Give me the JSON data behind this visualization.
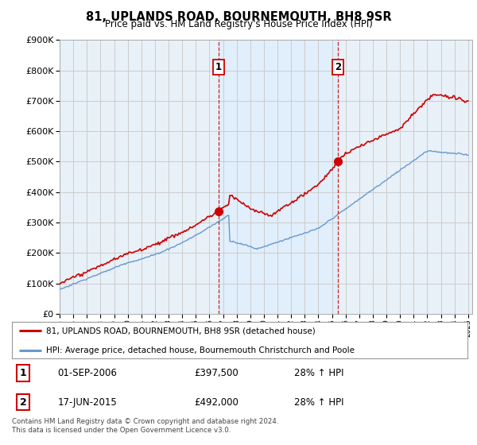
{
  "title": "81, UPLANDS ROAD, BOURNEMOUTH, BH8 9SR",
  "subtitle": "Price paid vs. HM Land Registry's House Price Index (HPI)",
  "ylim": [
    0,
    900000
  ],
  "yticks": [
    0,
    100000,
    200000,
    300000,
    400000,
    500000,
    600000,
    700000,
    800000,
    900000
  ],
  "x_start_year": 1995,
  "x_end_year": 2025,
  "red_color": "#cc0000",
  "blue_color": "#6699cc",
  "blue_fill": "#ddeeff",
  "grid_color": "#cccccc",
  "bg_color": "#e8f0f8",
  "sale1_year": 2006.67,
  "sale2_year": 2015.46,
  "sale1_price": 397500,
  "sale2_price": 492000,
  "legend_line1": "81, UPLANDS ROAD, BOURNEMOUTH, BH8 9SR (detached house)",
  "legend_line2": "HPI: Average price, detached house, Bournemouth Christchurch and Poole",
  "table_row1": [
    "1",
    "01-SEP-2006",
    "£397,500",
    "28% ↑ HPI"
  ],
  "table_row2": [
    "2",
    "17-JUN-2015",
    "£492,000",
    "28% ↑ HPI"
  ],
  "footer": "Contains HM Land Registry data © Crown copyright and database right 2024.\nThis data is licensed under the Open Government Licence v3.0."
}
